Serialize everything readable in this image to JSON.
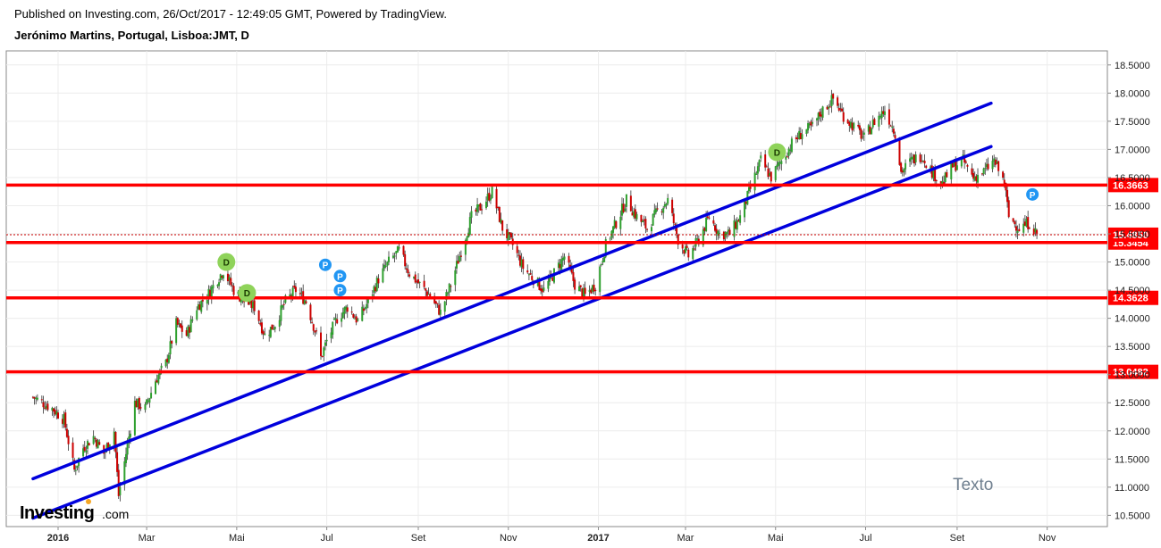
{
  "header": {
    "published": "Published on Investing.com, 26/Oct/2017 - 12:49:05 GMT, Powered by TradingView.",
    "symbol": "Jerónimo Martins, Portugal, Lisboa:JMT, D"
  },
  "colors": {
    "up_candle": "#2ea02e",
    "down_candle": "#cc0000",
    "support_line": "#ff0000",
    "trend_line": "#0000dd",
    "d_marker": "#8fd35a",
    "p_marker": "#2196f3",
    "grid": "#ececec"
  },
  "chart_data": {
    "type": "candlestick",
    "title": "Jerónimo Martins, Portugal, Lisboa:JMT, D",
    "x_range": [
      "2015-12-15",
      "2017-11-30"
    ],
    "ylim": [
      10.3,
      18.75
    ],
    "grid": true,
    "y_ticks": [
      "18.5000",
      "18.0000",
      "17.5000",
      "17.0000",
      "16.5000",
      "16.0000",
      "15.5000",
      "15.0000",
      "14.5000",
      "14.0000",
      "13.5000",
      "13.0000",
      "12.5000",
      "12.0000",
      "11.5000",
      "11.0000",
      "10.5000"
    ],
    "x_ticks": [
      {
        "label": "2016",
        "date": "2016-01-01",
        "bold": true
      },
      {
        "label": "Mar",
        "date": "2016-03-01"
      },
      {
        "label": "Mai",
        "date": "2016-05-01"
      },
      {
        "label": "Jul",
        "date": "2016-07-01"
      },
      {
        "label": "Set",
        "date": "2016-09-01"
      },
      {
        "label": "Nov",
        "date": "2016-11-01"
      },
      {
        "label": "2017",
        "date": "2017-01-01",
        "bold": true
      },
      {
        "label": "Mar",
        "date": "2017-03-01"
      },
      {
        "label": "Mai",
        "date": "2017-05-01"
      },
      {
        "label": "Jul",
        "date": "2017-07-01"
      },
      {
        "label": "Set",
        "date": "2017-09-01"
      },
      {
        "label": "Nov",
        "date": "2017-11-01"
      }
    ],
    "close_path": [
      [
        "2015-12-15",
        12.6
      ],
      [
        "2015-12-28",
        12.4
      ],
      [
        "2016-01-05",
        12.2
      ],
      [
        "2016-01-12",
        11.3
      ],
      [
        "2016-01-18",
        11.7
      ],
      [
        "2016-01-25",
        11.9
      ],
      [
        "2016-02-01",
        11.6
      ],
      [
        "2016-02-08",
        12.0
      ],
      [
        "2016-02-11",
        10.85
      ],
      [
        "2016-02-16",
        11.6
      ],
      [
        "2016-02-22",
        12.5
      ],
      [
        "2016-02-29",
        12.4
      ],
      [
        "2016-03-07",
        12.9
      ],
      [
        "2016-03-14",
        13.2
      ],
      [
        "2016-03-21",
        13.9
      ],
      [
        "2016-03-28",
        13.7
      ],
      [
        "2016-04-04",
        14.2
      ],
      [
        "2016-04-11",
        14.4
      ],
      [
        "2016-04-18",
        14.7
      ],
      [
        "2016-04-22",
        14.85
      ],
      [
        "2016-04-29",
        14.5
      ],
      [
        "2016-05-06",
        14.3
      ],
      [
        "2016-05-13",
        14.2
      ],
      [
        "2016-05-20",
        13.7
      ],
      [
        "2016-05-27",
        13.9
      ],
      [
        "2016-06-03",
        14.3
      ],
      [
        "2016-06-10",
        14.5
      ],
      [
        "2016-06-17",
        14.3
      ],
      [
        "2016-06-24",
        13.7
      ],
      [
        "2016-06-27",
        13.3
      ],
      [
        "2016-07-01",
        13.6
      ],
      [
        "2016-07-08",
        14.0
      ],
      [
        "2016-07-15",
        14.2
      ],
      [
        "2016-07-22",
        13.95
      ],
      [
        "2016-07-29",
        14.3
      ],
      [
        "2016-08-05",
        14.7
      ],
      [
        "2016-08-12",
        15.0
      ],
      [
        "2016-08-19",
        15.2
      ],
      [
        "2016-08-26",
        14.8
      ],
      [
        "2016-09-02",
        14.6
      ],
      [
        "2016-09-09",
        14.4
      ],
      [
        "2016-09-16",
        14.1
      ],
      [
        "2016-09-23",
        14.6
      ],
      [
        "2016-09-30",
        15.2
      ],
      [
        "2016-10-07",
        15.8
      ],
      [
        "2016-10-14",
        16.0
      ],
      [
        "2016-10-21",
        16.25
      ],
      [
        "2016-10-28",
        15.6
      ],
      [
        "2016-11-04",
        15.3
      ],
      [
        "2016-11-11",
        14.9
      ],
      [
        "2016-11-18",
        14.7
      ],
      [
        "2016-11-25",
        14.5
      ],
      [
        "2016-12-02",
        14.8
      ],
      [
        "2016-12-09",
        15.1
      ],
      [
        "2016-12-16",
        14.6
      ],
      [
        "2016-12-23",
        14.4
      ],
      [
        "2016-12-30",
        14.6
      ],
      [
        "2017-01-06",
        15.3
      ],
      [
        "2017-01-13",
        15.7
      ],
      [
        "2017-01-20",
        16.1
      ],
      [
        "2017-01-27",
        15.8
      ],
      [
        "2017-02-03",
        15.6
      ],
      [
        "2017-02-10",
        15.9
      ],
      [
        "2017-02-17",
        16.1
      ],
      [
        "2017-02-24",
        15.4
      ],
      [
        "2017-03-03",
        15.1
      ],
      [
        "2017-03-10",
        15.4
      ],
      [
        "2017-03-17",
        15.8
      ],
      [
        "2017-03-24",
        15.5
      ],
      [
        "2017-03-31",
        15.5
      ],
      [
        "2017-04-07",
        15.8
      ],
      [
        "2017-04-14",
        16.3
      ],
      [
        "2017-04-21",
        16.8
      ],
      [
        "2017-04-28",
        16.5
      ],
      [
        "2017-05-05",
        16.8
      ],
      [
        "2017-05-12",
        17.1
      ],
      [
        "2017-05-19",
        17.3
      ],
      [
        "2017-05-26",
        17.4
      ],
      [
        "2017-06-02",
        17.7
      ],
      [
        "2017-06-09",
        17.9
      ],
      [
        "2017-06-16",
        17.6
      ],
      [
        "2017-06-23",
        17.4
      ],
      [
        "2017-06-30",
        17.2
      ],
      [
        "2017-07-07",
        17.5
      ],
      [
        "2017-07-14",
        17.7
      ],
      [
        "2017-07-21",
        17.3
      ],
      [
        "2017-07-25",
        16.6
      ],
      [
        "2017-08-01",
        16.8
      ],
      [
        "2017-08-08",
        16.9
      ],
      [
        "2017-08-15",
        16.6
      ],
      [
        "2017-08-22",
        16.4
      ],
      [
        "2017-08-29",
        16.7
      ],
      [
        "2017-09-05",
        16.8
      ],
      [
        "2017-09-12",
        16.5
      ],
      [
        "2017-09-19",
        16.6
      ],
      [
        "2017-09-26",
        16.8
      ],
      [
        "2017-10-03",
        16.4
      ],
      [
        "2017-10-06",
        15.8
      ],
      [
        "2017-10-13",
        15.6
      ],
      [
        "2017-10-20",
        15.7
      ],
      [
        "2017-10-26",
        15.45
      ]
    ],
    "horizontal_levels": [
      {
        "value": 16.3663,
        "label": "16.3663"
      },
      {
        "value": 15.3454,
        "label": "15.3454"
      },
      {
        "value": 14.3628,
        "label": "14.3628"
      },
      {
        "value": 13.0482,
        "label": "13.0482"
      }
    ],
    "last_price": {
      "value": 15.485,
      "label": "15.4850"
    },
    "trend_lines": [
      {
        "from": [
          "2015-12-15",
          11.15
        ],
        "to": [
          "2017-09-24",
          17.82
        ]
      },
      {
        "from": [
          "2015-12-15",
          10.45
        ],
        "to": [
          "2017-09-24",
          17.05
        ]
      }
    ],
    "markers": [
      {
        "label": "D",
        "type": "dividend",
        "date": "2016-04-24",
        "value": 15.0
      },
      {
        "label": "D",
        "type": "dividend",
        "date": "2016-05-08",
        "value": 14.45
      },
      {
        "label": "D",
        "type": "dividend",
        "date": "2017-05-02",
        "value": 16.95
      },
      {
        "label": "P",
        "type": "event",
        "date": "2016-06-30",
        "value": 14.95
      },
      {
        "label": "P",
        "type": "event",
        "date": "2016-07-10",
        "value": 14.75
      },
      {
        "label": "P",
        "type": "event",
        "date": "2016-07-10",
        "value": 14.5
      },
      {
        "label": "P",
        "type": "event",
        "date": "2017-10-22",
        "value": 16.2
      }
    ],
    "annotations": [
      {
        "text": "Texto",
        "date": "2017-08-29",
        "value": 10.95
      }
    ]
  },
  "branding": {
    "logo_main": "Investing",
    "logo_domain": ".com"
  }
}
